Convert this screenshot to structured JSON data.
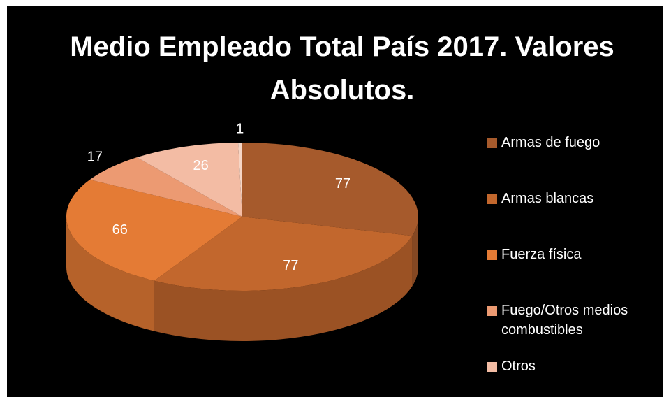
{
  "chart_data": {
    "type": "pie",
    "title": "Medio Empleado Total País 2017. Valores Absolutos.",
    "categories": [
      "Armas de fuego",
      "Armas blancas",
      "Fuerza física",
      "Fuego/Otros medios combustibles",
      "Otros",
      null
    ],
    "values": [
      77,
      77,
      66,
      17,
      26,
      1
    ],
    "colors": [
      "#a65a2c",
      "#c2672d",
      "#e47b35",
      "#ec9a72",
      "#f3bca4",
      "#f6d6c6"
    ],
    "legend": "right"
  }
}
